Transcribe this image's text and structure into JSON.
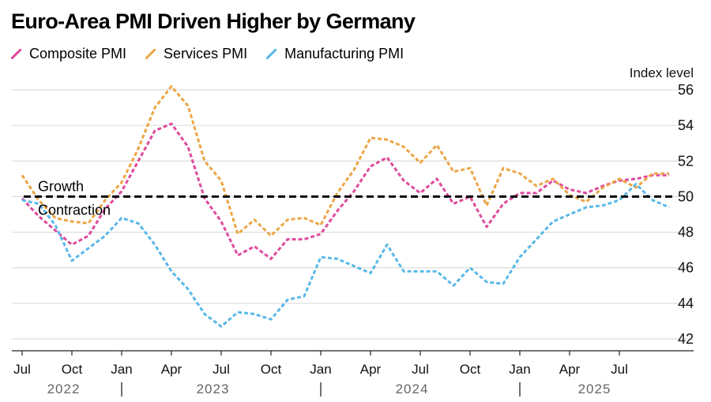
{
  "title": "Euro-Area PMI Driven Higher by Germany",
  "colors": {
    "composite": "#df4a9d",
    "services": "#eca646",
    "manufacturing": "#5ab8e8",
    "threshold": "#000000",
    "grid": "#d6d6d6",
    "axis": "#222222",
    "tick_text": "#111111",
    "year_text": "#666666"
  },
  "chart_data": {
    "type": "line",
    "title": "Euro-Area PMI Driven Higher by Germany",
    "ylabel": "Index level",
    "ylim": [
      41.5,
      57
    ],
    "yticks": [
      42,
      44,
      46,
      48,
      50,
      52,
      54,
      56
    ],
    "y_axis_side": "right",
    "grid": true,
    "legend": "top-left",
    "x_range": [
      "2022-07",
      "2025-10"
    ],
    "x_tick_labels": [
      {
        "date": "2022-07",
        "label": "Jul"
      },
      {
        "date": "2022-10",
        "label": "Oct"
      },
      {
        "date": "2023-01",
        "label": "Jan"
      },
      {
        "date": "2023-04",
        "label": "Apr"
      },
      {
        "date": "2023-07",
        "label": "Jul"
      },
      {
        "date": "2023-10",
        "label": "Oct"
      },
      {
        "date": "2024-01",
        "label": "Jan"
      },
      {
        "date": "2024-04",
        "label": "Apr"
      },
      {
        "date": "2024-07",
        "label": "Jul"
      },
      {
        "date": "2024-10",
        "label": "Oct"
      },
      {
        "date": "2025-01",
        "label": "Jan"
      },
      {
        "date": "2025-04",
        "label": "Apr"
      },
      {
        "date": "2025-07",
        "label": "Jul"
      }
    ],
    "year_labels": [
      {
        "label": "2022",
        "from": "2022-07",
        "to": "2022-12"
      },
      {
        "label": "2023",
        "from": "2023-01",
        "to": "2023-12"
      },
      {
        "label": "2024",
        "from": "2024-01",
        "to": "2024-12"
      },
      {
        "label": "2025",
        "from": "2025-01",
        "to": "2025-10"
      }
    ],
    "year_separators": [
      "2023-01",
      "2024-01",
      "2025-01"
    ],
    "threshold": {
      "value": 50,
      "label_above": "Growth",
      "label_below": "Contraction"
    },
    "x": [
      "2022-07",
      "2022-08",
      "2022-09",
      "2022-10",
      "2022-11",
      "2022-12",
      "2023-01",
      "2023-02",
      "2023-03",
      "2023-04",
      "2023-05",
      "2023-06",
      "2023-07",
      "2023-08",
      "2023-09",
      "2023-10",
      "2023-11",
      "2023-12",
      "2024-01",
      "2024-02",
      "2024-03",
      "2024-04",
      "2024-05",
      "2024-06",
      "2024-07",
      "2024-08",
      "2024-09",
      "2024-10",
      "2024-11",
      "2024-12",
      "2025-01",
      "2025-02",
      "2025-03",
      "2025-04",
      "2025-05",
      "2025-06",
      "2025-07",
      "2025-08",
      "2025-09",
      "2025-10"
    ],
    "series": [
      {
        "name": "Composite PMI",
        "color_key": "composite",
        "values": [
          49.9,
          48.9,
          48.1,
          47.3,
          47.8,
          49.3,
          50.3,
          52.0,
          53.7,
          54.1,
          52.8,
          49.9,
          48.6,
          46.7,
          47.2,
          46.5,
          47.6,
          47.6,
          47.9,
          49.2,
          50.3,
          51.7,
          52.2,
          50.9,
          50.2,
          51.0,
          49.6,
          50.0,
          48.3,
          49.6,
          50.2,
          50.2,
          50.9,
          50.4,
          50.2,
          50.6,
          50.9,
          51.0,
          51.2,
          51.2
        ]
      },
      {
        "name": "Services PMI",
        "color_key": "services",
        "values": [
          51.2,
          49.8,
          48.8,
          48.6,
          48.5,
          49.8,
          50.8,
          52.7,
          55.0,
          56.2,
          55.1,
          52.0,
          50.9,
          47.9,
          48.7,
          47.8,
          48.7,
          48.8,
          48.4,
          50.2,
          51.5,
          53.3,
          53.2,
          52.8,
          51.9,
          52.9,
          51.4,
          51.6,
          49.5,
          51.6,
          51.3,
          50.6,
          51.0,
          50.1,
          49.7,
          50.5,
          51.0,
          50.5,
          51.3,
          51.3
        ]
      },
      {
        "name": "Manufacturing PMI",
        "color_key": "manufacturing",
        "values": [
          49.8,
          49.6,
          48.4,
          46.4,
          47.1,
          47.8,
          48.8,
          48.5,
          47.3,
          45.8,
          44.8,
          43.4,
          42.7,
          43.5,
          43.4,
          43.1,
          44.2,
          44.4,
          46.6,
          46.5,
          46.1,
          45.7,
          47.3,
          45.8,
          45.8,
          45.8,
          45.0,
          46.0,
          45.2,
          45.1,
          46.6,
          47.6,
          48.6,
          49.0,
          49.4,
          49.5,
          49.8,
          50.7,
          49.8,
          49.4
        ]
      }
    ]
  }
}
